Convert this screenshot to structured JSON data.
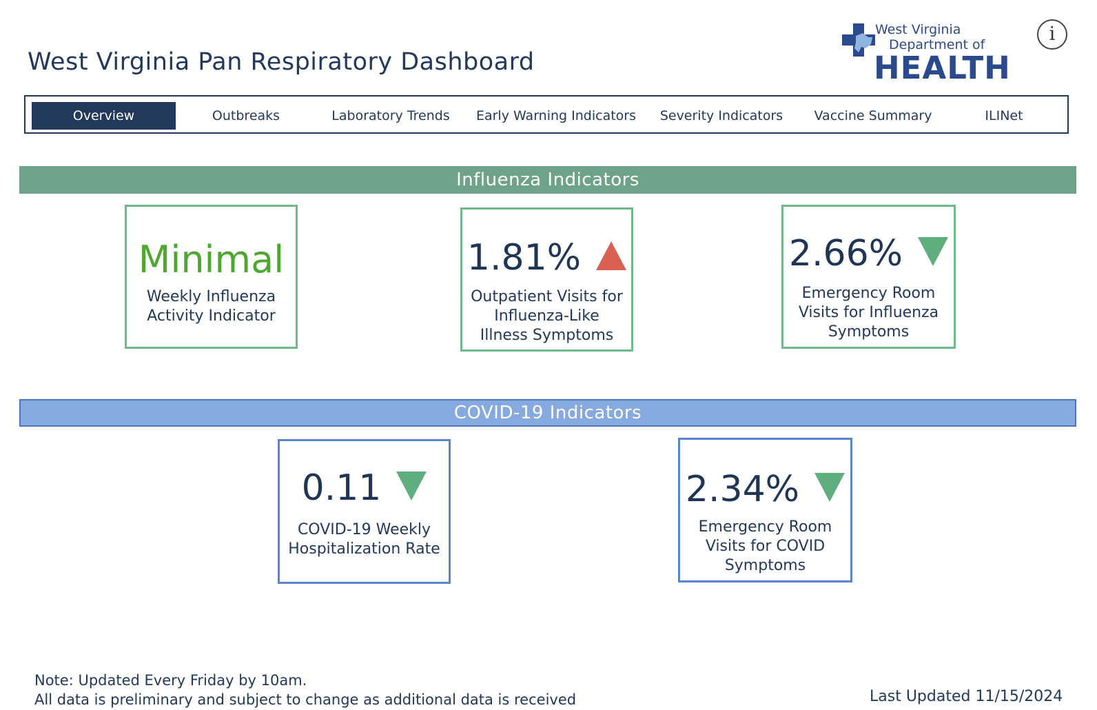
{
  "header": {
    "title": "West Virginia Pan Respiratory Dashboard",
    "logo": {
      "line1": "West Virginia",
      "line2": "Department of",
      "line3": "HEALTH"
    },
    "info_icon": "i"
  },
  "nav": {
    "tabs": [
      {
        "label": "Overview",
        "active": true
      },
      {
        "label": "Outbreaks"
      },
      {
        "label": "Laboratory Trends"
      },
      {
        "label": "Early Warning Indicators"
      },
      {
        "label": "Severity Indicators"
      },
      {
        "label": "Vaccine Summary"
      },
      {
        "label": "ILINet"
      }
    ]
  },
  "influenza": {
    "heading": "Influenza Indicators",
    "cards": [
      {
        "value": "Minimal",
        "label": "Weekly Influenza\nActivity Indicator"
      },
      {
        "value": "1.81%",
        "label": "Outpatient Visits for\nInfluenza-Like\nIllness Symptoms",
        "trend": "up"
      },
      {
        "value": "2.66%",
        "label": "Emergency Room\nVisits for Influenza\nSymptoms",
        "trend": "down"
      }
    ]
  },
  "covid": {
    "heading": "COVID-19 Indicators",
    "cards": [
      {
        "value": "0.11",
        "label": "COVID-19 Weekly\nHospitalization Rate",
        "trend": "down"
      },
      {
        "value": "2.34%",
        "label": "Emergency Room\nVisits for COVID\nSymptoms",
        "trend": "down"
      }
    ]
  },
  "footer": {
    "note_line1": "Note: Updated Every Friday by 10am.",
    "note_line2": "All data is preliminary and subject to change as additional data is received",
    "last_updated_label": "Last Updated",
    "last_updated_date": "11/15/2024"
  },
  "colors": {
    "navy": "#23395b",
    "flu_banner": "#6fa389",
    "covid_banner": "#86a9e0",
    "trend_up": "#d86154",
    "trend_down": "#5fae7e",
    "minimal_green": "#4ea72f"
  }
}
